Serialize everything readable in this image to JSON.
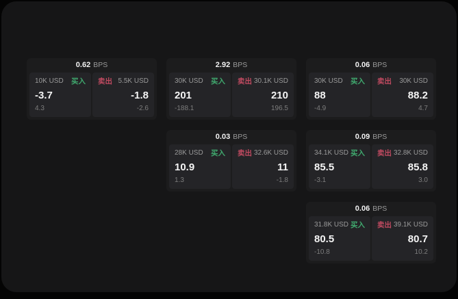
{
  "labels": {
    "bps_unit": "BPS",
    "buy": "买入",
    "sell": "卖出"
  },
  "colors": {
    "frame_bg": "#040404",
    "page_bg": "#161617",
    "card_bg": "#1c1c1d",
    "cell_bg": "#242427",
    "buy_green": "#40a96e",
    "sell_red": "#bf4a60",
    "value_text": "#f4f4f4",
    "label_text": "#9a9a9a",
    "sub_text": "#7d7d7d"
  },
  "cards": [
    {
      "bps": "0.62",
      "buy": {
        "amount": "10K USD",
        "value": "-3.7",
        "change": "4.3"
      },
      "sell": {
        "amount": "5.5K USD",
        "value": "-1.8",
        "change": "-2.6"
      }
    },
    {
      "bps": "2.92",
      "buy": {
        "amount": "30K USD",
        "value": "201",
        "change": "-188.1"
      },
      "sell": {
        "amount": "30.1K USD",
        "value": "210",
        "change": "196.5"
      }
    },
    {
      "bps": "0.06",
      "buy": {
        "amount": "30K USD",
        "value": "88",
        "change": "-4.9"
      },
      "sell": {
        "amount": "30K USD",
        "value": "88.2",
        "change": "4.7"
      }
    },
    {
      "bps": "0.03",
      "buy": {
        "amount": "28K USD",
        "value": "10.9",
        "change": "1.3"
      },
      "sell": {
        "amount": "32.6K USD",
        "value": "11",
        "change": "-1.8"
      }
    },
    {
      "bps": "0.09",
      "buy": {
        "amount": "34.1K USD",
        "value": "85.5",
        "change": "-3.1"
      },
      "sell": {
        "amount": "32.8K USD",
        "value": "85.8",
        "change": "3.0"
      }
    },
    {
      "bps": "0.06",
      "buy": {
        "amount": "31.8K USD",
        "value": "80.5",
        "change": "-10.8"
      },
      "sell": {
        "amount": "39.1K USD",
        "value": "80.7",
        "change": "10.2"
      }
    }
  ]
}
